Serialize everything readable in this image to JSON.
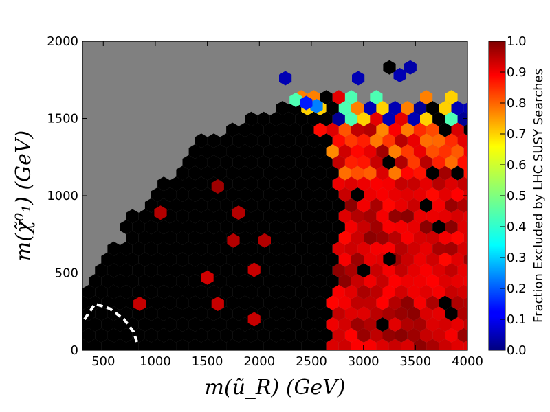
{
  "chart_data": {
    "type": "heatmap",
    "subtype": "hexbin",
    "xlabel": "m(ũ_R) (GeV)",
    "ylabel": "m(χ̃⁰₁) (GeV)",
    "xlim": [
      300,
      4000
    ],
    "ylim": [
      0,
      2000
    ],
    "x_ticks": [
      500,
      1000,
      1500,
      2000,
      2500,
      3000,
      3500,
      4000
    ],
    "y_ticks": [
      0,
      500,
      1000,
      1500,
      2000
    ],
    "background_color": "#808080",
    "colorbar": {
      "label": "Fraction Excluded by LHC SUSY Searches",
      "colormap": "jet",
      "range": [
        0.0,
        1.0
      ],
      "ticks": [
        0.0,
        0.1,
        0.2,
        0.3,
        0.4,
        0.5,
        0.6,
        0.7,
        0.8,
        0.9,
        1.0
      ],
      "tick_labels": [
        "0.0",
        "0.1",
        "0.2",
        "0.3",
        "0.4",
        "0.5",
        "0.6",
        "0.7",
        "0.8",
        "0.9",
        "1.0"
      ]
    },
    "populated_region_boundary": {
      "description": "upper-left envelope of filled bins",
      "x": [
        300,
        500,
        1000,
        1500,
        2000,
        2300,
        2500,
        4000
      ],
      "y": [
        400,
        620,
        1050,
        1390,
        1520,
        1620,
        1650,
        1650
      ]
    },
    "excluded_region_boundary": {
      "description": "left edge of high-fraction region vs m(chi)",
      "y": [
        0,
        300,
        600,
        900,
        1200,
        1500,
        1700
      ],
      "x": [
        2700,
        2700,
        2750,
        2800,
        2700,
        2450,
        2300
      ]
    },
    "isolated_bins": [
      {
        "x": 850,
        "y": 300,
        "value": 0.93
      },
      {
        "x": 1050,
        "y": 890,
        "value": 0.95
      },
      {
        "x": 1600,
        "y": 300,
        "value": 0.93
      },
      {
        "x": 1600,
        "y": 1060,
        "value": 0.97
      },
      {
        "x": 1800,
        "y": 890,
        "value": 0.95
      },
      {
        "x": 1750,
        "y": 710,
        "value": 0.95
      },
      {
        "x": 1500,
        "y": 470,
        "value": 0.92
      },
      {
        "x": 1950,
        "y": 520,
        "value": 0.93
      },
      {
        "x": 1950,
        "y": 200,
        "value": 0.93
      },
      {
        "x": 2050,
        "y": 710,
        "value": 0.95
      },
      {
        "x": 3250,
        "y": 590,
        "value": 0.0,
        "note": "black bin"
      },
      {
        "x": 3350,
        "y": 1780,
        "value": 0.05
      },
      {
        "x": 3450,
        "y": 1830,
        "value": 0.04
      },
      {
        "x": 2950,
        "y": 1760,
        "value": 0.05
      },
      {
        "x": 3250,
        "y": 1830,
        "value": 0.0
      },
      {
        "x": 2250,
        "y": 1760,
        "value": 0.05
      },
      {
        "x": 2350,
        "y": 1620,
        "value": 0.45
      },
      {
        "x": 2550,
        "y": 1580,
        "value": 0.25
      },
      {
        "x": 2450,
        "y": 1600,
        "value": 0.15
      }
    ],
    "dashed_contour": {
      "style": "white dashed",
      "x": [
        320,
        420,
        560,
        700,
        790,
        830
      ],
      "y": [
        200,
        300,
        270,
        200,
        120,
        40
      ]
    }
  }
}
